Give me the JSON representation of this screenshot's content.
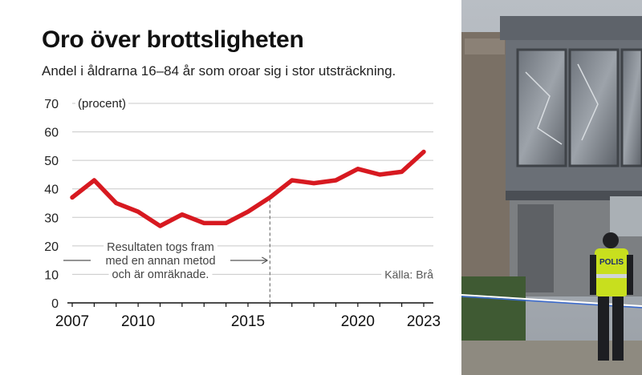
{
  "title": "Oro över brottsligheten",
  "subtitle": "Andel i åldrarna 16–84 år som oroar sig i stor utsträckning.",
  "chart_data": {
    "type": "line",
    "title": "Oro över brottsligheten",
    "subtitle": "Andel i åldrarna 16–84 år som oroar sig i stor utsträckning.",
    "unit_label": "(procent)",
    "x": [
      2007,
      2008,
      2009,
      2010,
      2011,
      2012,
      2013,
      2014,
      2015,
      2016,
      2017,
      2018,
      2019,
      2020,
      2021,
      2022,
      2023
    ],
    "series": [
      {
        "values": [
          37,
          43,
          35,
          32,
          27,
          31,
          28,
          28,
          32,
          37,
          43,
          42,
          43,
          47,
          45,
          46,
          53
        ],
        "color": "#d71920"
      }
    ],
    "xlim": [
      2007,
      2023
    ],
    "ylim": [
      0,
      70
    ],
    "y_ticks": [
      0,
      10,
      20,
      30,
      40,
      50,
      60,
      70
    ],
    "x_tick_labels": [
      "2007",
      "2010",
      "2015",
      "2020",
      "2023"
    ],
    "grid": true,
    "annotation": {
      "x": 2016,
      "lines": [
        "Resultaten togs fram",
        "med en annan metod",
        "och är omräknade."
      ]
    },
    "source": "Källa: Brå"
  },
  "photo": {
    "sign_text": "POLIS"
  }
}
